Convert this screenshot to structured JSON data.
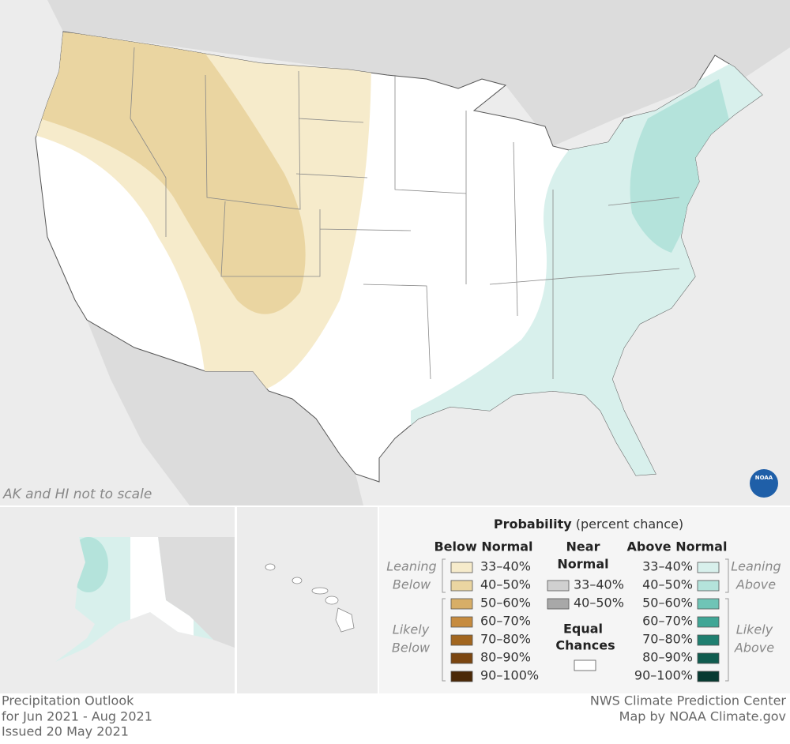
{
  "map": {
    "note": "AK and HI not to scale",
    "logo": "NOAA"
  },
  "legend": {
    "title": "Probability",
    "title_note": "(percent chance)",
    "below": {
      "heading": "Below Normal",
      "leaning": [
        "Leaning",
        "Below"
      ],
      "likely": [
        "Likely",
        "Below"
      ],
      "items": [
        {
          "label": "33–40%",
          "color": "#f6ebcb"
        },
        {
          "label": "40–50%",
          "color": "#ead5a1"
        },
        {
          "label": "50–60%",
          "color": "#d7ae67"
        },
        {
          "label": "60–70%",
          "color": "#c68b3f"
        },
        {
          "label": "70–80%",
          "color": "#a2661f"
        },
        {
          "label": "80–90%",
          "color": "#7b4611"
        },
        {
          "label": "90–100%",
          "color": "#4b2908"
        }
      ]
    },
    "near": {
      "heading": [
        "Near",
        "Normal"
      ],
      "items": [
        {
          "label": "33–40%",
          "color": "#d0d0d0"
        },
        {
          "label": "40–50%",
          "color": "#a8a8a8"
        }
      ]
    },
    "equal": {
      "heading": [
        "Equal",
        "Chances"
      ],
      "color": "#ffffff"
    },
    "above": {
      "heading": "Above Normal",
      "leaning": [
        "Leaning",
        "Above"
      ],
      "likely": [
        "Likely",
        "Above"
      ],
      "items": [
        {
          "label": "33–40%",
          "color": "#d8f0ec"
        },
        {
          "label": "40–50%",
          "color": "#b4e3db"
        },
        {
          "label": "50–60%",
          "color": "#6fc4b6"
        },
        {
          "label": "60–70%",
          "color": "#40a696"
        },
        {
          "label": "70–80%",
          "color": "#1f7f70"
        },
        {
          "label": "80–90%",
          "color": "#105c4f"
        },
        {
          "label": "90–100%",
          "color": "#073a31"
        }
      ]
    }
  },
  "footer": {
    "left": [
      "Precipitation Outlook",
      "for Jun 2021 - Aug 2021",
      "Issued 20 May 2021"
    ],
    "right": [
      "NWS Climate Prediction Center",
      "Map by NOAA Climate.gov"
    ]
  }
}
